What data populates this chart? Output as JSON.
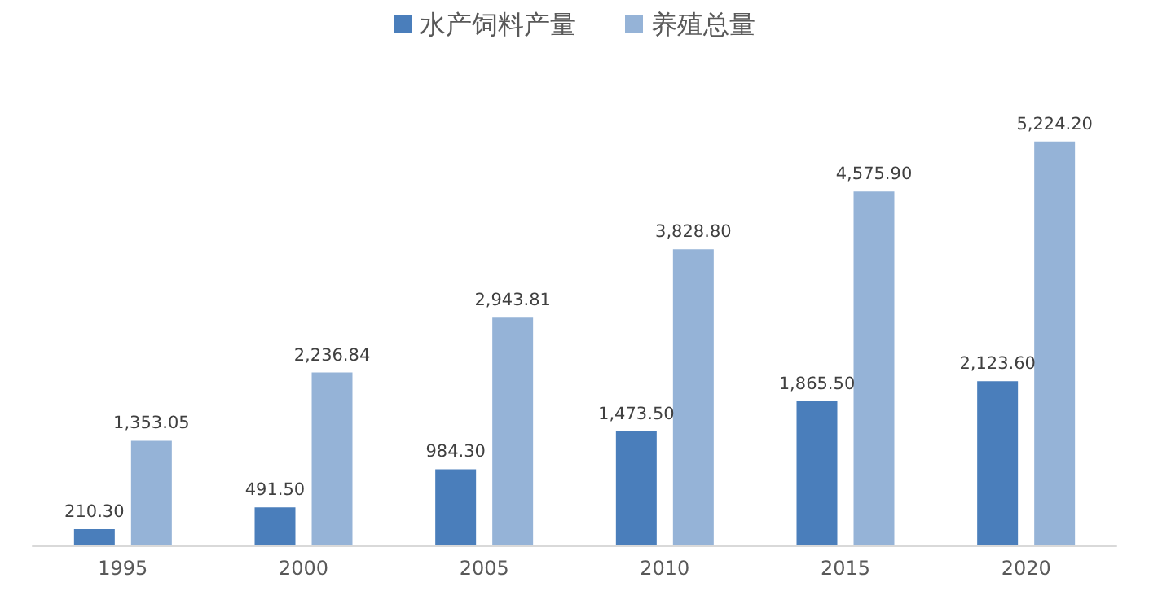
{
  "chart_data": {
    "type": "bar",
    "categories": [
      "1995",
      "2000",
      "2005",
      "2010",
      "2015",
      "2020"
    ],
    "series": [
      {
        "name": "水产饲料产量",
        "color": "#4a7ebb",
        "values": [
          210.3,
          491.5,
          984.3,
          1473.5,
          1865.5,
          2123.6
        ],
        "value_labels": [
          "210.30",
          "491.50",
          "984.30",
          "1,473.50",
          "1,865.50",
          "2,123.60"
        ]
      },
      {
        "name": "养殖总量",
        "color": "#95b3d7",
        "values": [
          1353.05,
          2236.84,
          2943.81,
          3828.8,
          4575.9,
          5224.2
        ],
        "value_labels": [
          "1,353.05",
          "2,236.84",
          "2,943.81",
          "3,828.80",
          "4,575.90",
          "5,224.20"
        ]
      }
    ],
    "legend": "top",
    "grid": false,
    "tick_labels": "x"
  }
}
